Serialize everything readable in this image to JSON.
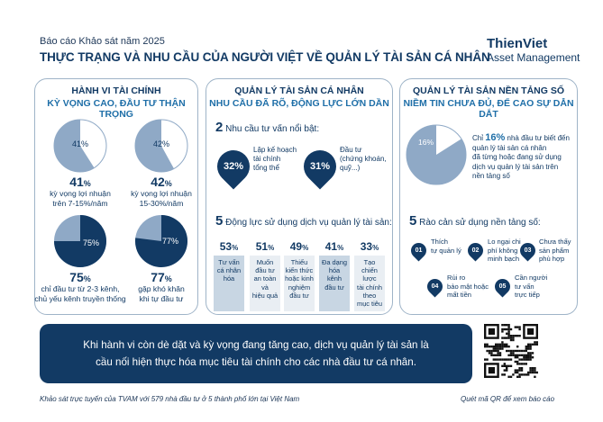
{
  "header": {
    "report_label": "Báo cáo Khảo sát năm 2025",
    "title": "THỰC TRẠNG VÀ NHU CẦU CỦA NGƯỜI VIỆT VỀ QUẢN LÝ TÀI SẢN CÁ NHÂN",
    "logo_line1": "ThienViet",
    "logo_line2": "Asset Management"
  },
  "colors": {
    "navy": "#123a64",
    "light_blue": "#8fa9c6",
    "accent": "#1f6fa8",
    "box": "#e9eef3"
  },
  "panel1": {
    "title": "HÀNH VI TÀI CHÍNH",
    "subtitle": "KỲ VỌNG CAO, ĐẦU TƯ THẬN TRỌNG",
    "items": [
      {
        "pie_pct": 41,
        "pie_label": "41%",
        "value": "41",
        "unit": "%",
        "line1": "kỳ vọng lợi nhuận",
        "line2": "trên 7-15%/năm"
      },
      {
        "pie_pct": 42,
        "pie_label": "42%",
        "value": "42",
        "unit": "%",
        "line1": "kỳ vọng lợi nhuận",
        "line2": "15-30%/năm"
      },
      {
        "pie_pct": 75,
        "pie_label": "75%",
        "value": "75",
        "unit": "%",
        "line1": "chỉ đầu tư từ 2-3 kênh,",
        "line2": "chủ yếu kênh truyền thống"
      },
      {
        "pie_pct": 77,
        "pie_label": "77%",
        "value": "77",
        "unit": "%",
        "line1": "gặp khó khăn",
        "line2": "khi tự đầu tư"
      }
    ]
  },
  "panel2": {
    "title": "QUẢN LÝ TÀI SẢN CÁ NHÂN",
    "subtitle": "NHU CẦU ĐÃ RÕ, ĐỘNG LỰC LỚN DẦN",
    "needs_num": "2",
    "needs_text": "Nhu cầu tư vấn nổi bật:",
    "needs": [
      {
        "pct": "32%",
        "line1": "Lập kế hoạch",
        "line2": "tài chính",
        "line3": "tổng thể"
      },
      {
        "pct": "31%",
        "line1": "Đầu tư",
        "line2": "(chứng khoán,",
        "line3": "quỹ...)"
      }
    ],
    "motives_num": "5",
    "motives_text": "Động lực sử dụng dịch vụ quản lý tài sản:",
    "motives": [
      {
        "value": "53",
        "unit": "%",
        "l1": "Tư vấn",
        "l2": "cá nhân",
        "l3": "hóa",
        "l4": "",
        "l5": ""
      },
      {
        "value": "51",
        "unit": "%",
        "l1": "Muốn",
        "l2": "đầu tư",
        "l3": "an toàn và",
        "l4": "hiệu quả",
        "l5": ""
      },
      {
        "value": "49",
        "unit": "%",
        "l1": "Thiếu",
        "l2": "kiến thức",
        "l3": "hoặc kinh",
        "l4": "nghiệm",
        "l5": "đầu tư"
      },
      {
        "value": "41",
        "unit": "%",
        "l1": "Đa dạng",
        "l2": "hóa",
        "l3": "kênh",
        "l4": "đầu tư",
        "l5": ""
      },
      {
        "value": "33",
        "unit": "%",
        "l1": "Tạo",
        "l2": "chiến lược",
        "l3": "tài chính",
        "l4": "theo",
        "l5": "mục tiêu"
      }
    ]
  },
  "panel3": {
    "title": "QUẢN LÝ TÀI SẢN NỀN TẢNG SỐ",
    "subtitle": "NIỀM TIN CHƯA ĐỦ, ĐỂ CAO SỰ DẪN DẮT",
    "pie_pct": 16,
    "pie_label": "16%",
    "desc_pre": "Chỉ",
    "desc_pct": "16%",
    "desc_post": "nhà đầu tư biết đến",
    "desc2": "quản lý tài sản cá nhân",
    "desc3": "đã từng hoặc đang sử dụng",
    "desc4": "dịch vụ quản lý tài sản trên",
    "desc5": "nền tảng số",
    "barriers_num": "5",
    "barriers_text": "Rào cản sử dụng nền tảng số:",
    "barriers": [
      {
        "n": "01",
        "l1": "Thích",
        "l2": "tự quản lý",
        "l3": ""
      },
      {
        "n": "02",
        "l1": "Lo ngại chi",
        "l2": "phí không",
        "l3": "minh bạch"
      },
      {
        "n": "03",
        "l1": "Chưa thấy",
        "l2": "sản phẩm",
        "l3": "phù hợp"
      },
      {
        "n": "04",
        "l1": "Rủi ro",
        "l2": "bảo mật hoặc",
        "l3": "mất tiền"
      },
      {
        "n": "05",
        "l1": "Cần người",
        "l2": "tư vấn",
        "l3": "trực tiếp"
      }
    ]
  },
  "banner": {
    "line1": "Khi hành vi còn dè dặt và kỳ vọng đang tăng cao, dịch vụ quản lý tài sản là",
    "line2": "cầu nối hiện thực hóa mục tiêu tài chính cho các nhà đầu tư cá nhân."
  },
  "footer": {
    "left": "Khảo sát trực tuyến của TVAM với 579 nhà đầu tư ở 5 thành phố lớn tại Việt Nam",
    "right": "Quét mã QR để xem báo cáo"
  }
}
